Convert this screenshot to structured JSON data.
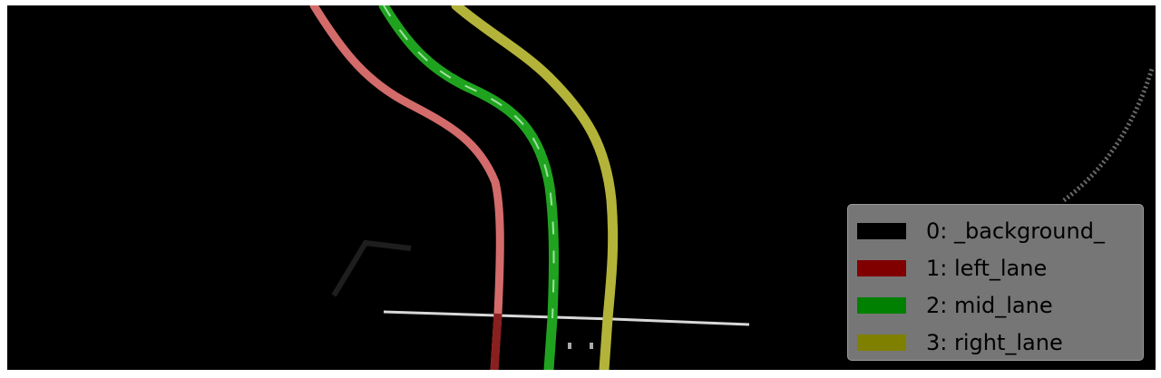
{
  "legend": {
    "entries": [
      {
        "label": "0: _background_",
        "color": "#000000"
      },
      {
        "label": "1: left_lane",
        "color": "#800000"
      },
      {
        "label": "2: mid_lane",
        "color": "#008000"
      },
      {
        "label": "3: right_lane",
        "color": "#808000"
      }
    ]
  },
  "overlay_colors": {
    "left_lane": "#d36b6b",
    "mid_lane": "#1fa31f",
    "right_lane": "#b3b33a",
    "stop_line": "#d8d8d8"
  }
}
